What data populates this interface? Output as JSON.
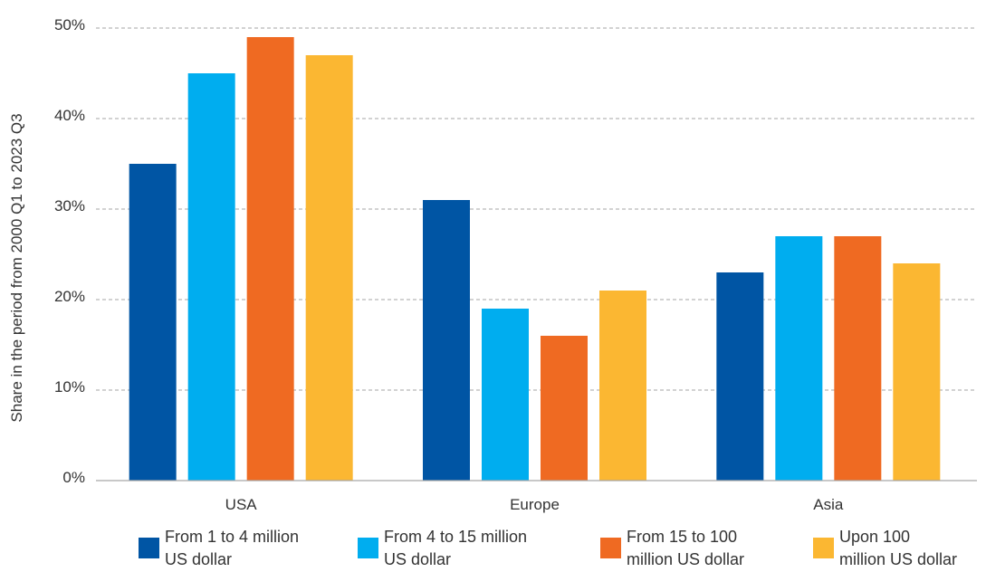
{
  "chart_data": {
    "type": "bar",
    "title": "",
    "xlabel": "",
    "ylabel": "Share in the period from 2000 Q1 to 2023 Q3",
    "ylim": [
      0,
      50
    ],
    "yticks": [
      0,
      10,
      20,
      30,
      40,
      50
    ],
    "ytick_labels": [
      "0%",
      "10%",
      "20%",
      "30%",
      "40%",
      "50%"
    ],
    "grid": true,
    "legend_position": "bottom",
    "categories": [
      "USA",
      "Europe",
      "Asia"
    ],
    "series": [
      {
        "name": "From 1 to 4 million US dollar",
        "legend_lines": [
          "From 1 to 4 million",
          "US dollar"
        ],
        "color": "#0055a4",
        "values": [
          35,
          31,
          23
        ]
      },
      {
        "name": "From 4 to 15 million US dollar",
        "legend_lines": [
          "From 4 to 15 million",
          "US dollar"
        ],
        "color": "#00adef",
        "values": [
          45,
          19,
          27
        ]
      },
      {
        "name": "From 15  to 100 million US dollar",
        "legend_lines": [
          "From 15  to 100",
          "million US dollar"
        ],
        "color": "#ef6a22",
        "values": [
          49,
          16,
          27
        ]
      },
      {
        "name": "Upon 100 million US dollar",
        "legend_lines": [
          "Upon 100",
          "million US dollar"
        ],
        "color": "#fbb732",
        "values": [
          47,
          21,
          24
        ]
      }
    ]
  }
}
